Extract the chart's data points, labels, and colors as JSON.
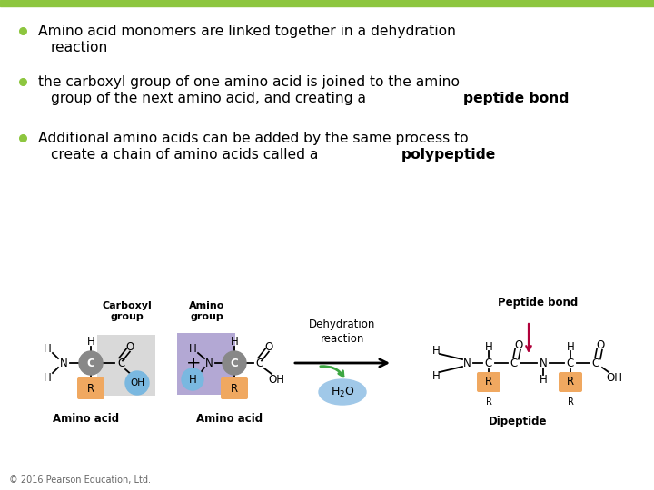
{
  "bg_color": "#ffffff",
  "top_bar_color": "#8dc63f",
  "bullet_color": "#8dc63f",
  "bullet_lines": [
    [
      "Amino acid monomers are linked together in a dehydration",
      "reaction"
    ],
    [
      "the carboxyl group of one amino acid is joined to the amino",
      "group of the next amino acid, and creating a ",
      "peptide bond"
    ],
    [
      "Additional amino acids can be added by the same process to",
      "create a chain of amino acids called a ",
      "polypeptide"
    ]
  ],
  "carboxyl_bg": "#d9d9d9",
  "amino_bg": "#b3a8d4",
  "oh_circle_color": "#7ab8e0",
  "h_circle_color": "#7ab8e0",
  "c_circle_color": "#888888",
  "r_rect_color": "#f0a860",
  "h2o_ellipse_color": "#a0c8e8",
  "arrow_green_color": "#3da642",
  "peptide_bond_arrow_color": "#b0003a",
  "footer": "© 2016 Pearson Education, Ltd."
}
